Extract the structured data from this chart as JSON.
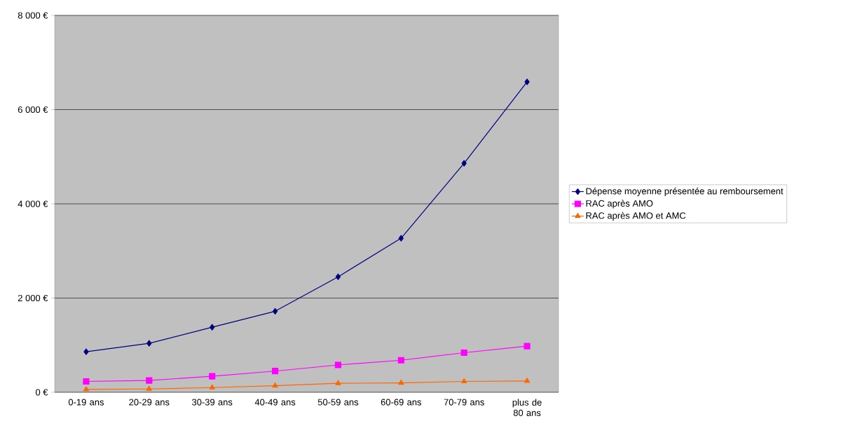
{
  "chart_data": {
    "type": "line",
    "categories": [
      "0-19 ans",
      "20-29 ans",
      "30-39 ans",
      "40-49 ans",
      "50-59 ans",
      "60-69 ans",
      "70-79 ans",
      "plus de 80 ans"
    ],
    "series": [
      {
        "name": "Dépense moyenne présentée au remboursement",
        "color": "#000080",
        "marker": "diamond",
        "values": [
          860,
          1040,
          1380,
          1720,
          2450,
          3270,
          4860,
          6590
        ]
      },
      {
        "name": "RAC après AMO",
        "color": "#ff00ff",
        "marker": "square",
        "values": [
          230,
          250,
          340,
          450,
          580,
          680,
          840,
          980
        ]
      },
      {
        "name": "RAC après AMO et AMC",
        "color": "#ff6600",
        "marker": "triangle",
        "values": [
          60,
          70,
          100,
          140,
          190,
          200,
          230,
          240
        ]
      }
    ],
    "ylim": [
      0,
      8000
    ],
    "yticks": [
      {
        "value": 0,
        "label": "0 €"
      },
      {
        "value": 2000,
        "label": "2 000 €"
      },
      {
        "value": 4000,
        "label": "4 000 €"
      },
      {
        "value": 6000,
        "label": "6 000 €"
      },
      {
        "value": 8000,
        "label": "8 000 €"
      }
    ],
    "grid": "y",
    "legend": "right",
    "line_style": "solid"
  }
}
